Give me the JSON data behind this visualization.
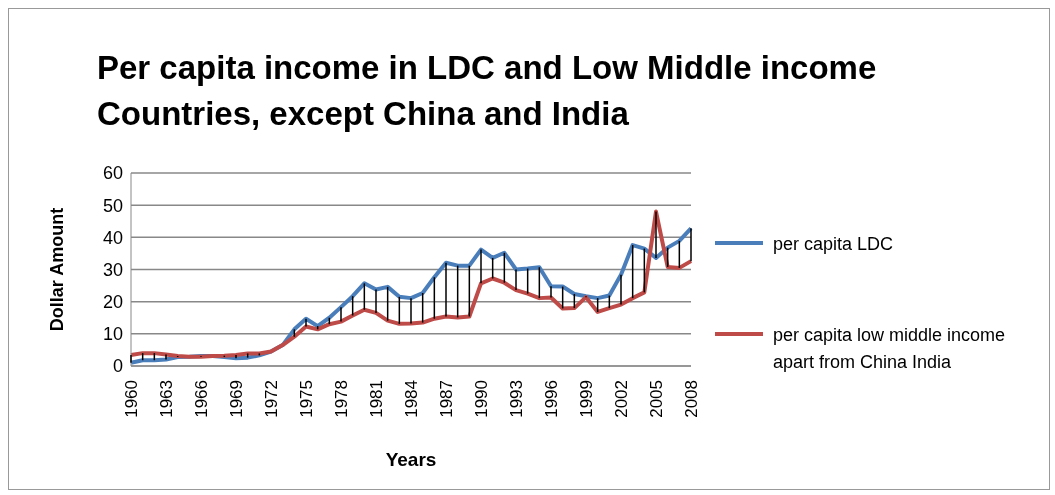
{
  "chart_data": {
    "type": "line",
    "title": "Per capita income in LDC and Low Middle income Countries, except China and India",
    "xlabel": "Years",
    "ylabel": "Dollar Amount",
    "categories": [
      "1960",
      null,
      null,
      "1963",
      null,
      null,
      "1966",
      null,
      null,
      "1969",
      null,
      null,
      "1972",
      null,
      null,
      "1975",
      null,
      null,
      "1978",
      null,
      null,
      "1981",
      null,
      null,
      "1984",
      null,
      null,
      "1987",
      null,
      null,
      "1990",
      null,
      null,
      "1993",
      null,
      null,
      "1996",
      null,
      null,
      "1999",
      null,
      null,
      "2002",
      null,
      null,
      "2005",
      null,
      null,
      "2008"
    ],
    "series": [
      {
        "name": "per capita LDC",
        "color": "#4a7ebb",
        "values": [
          1.0,
          1.8,
          1.8,
          2.0,
          2.8,
          2.9,
          3.1,
          3.1,
          2.8,
          2.4,
          2.6,
          3.3,
          4.5,
          6.5,
          11.4,
          14.7,
          12.4,
          15.0,
          18.3,
          21.7,
          25.7,
          23.8,
          24.6,
          21.5,
          21.1,
          22.7,
          27.6,
          32.1,
          31.2,
          31.2,
          36.2,
          33.6,
          35.2,
          30.0,
          30.3,
          30.7,
          24.8,
          24.7,
          22.4,
          21.7,
          21.1,
          21.9,
          28.4,
          37.6,
          36.5,
          33.6,
          36.8,
          38.9,
          42.8
        ]
      },
      {
        "name": "per capita low middle income apart from China India",
        "color": "#be4b48",
        "values": [
          3.4,
          4.0,
          4.0,
          3.6,
          3.1,
          2.9,
          2.9,
          3.1,
          3.2,
          3.4,
          3.9,
          3.9,
          4.5,
          6.5,
          9.1,
          12.3,
          11.4,
          13.0,
          13.8,
          15.7,
          17.5,
          16.5,
          14.1,
          13.1,
          13.2,
          13.5,
          14.7,
          15.4,
          15.1,
          15.4,
          25.7,
          27.2,
          25.9,
          23.6,
          22.5,
          21.1,
          21.3,
          17.9,
          18.0,
          21.4,
          16.8,
          18.0,
          19.1,
          21.1,
          22.9,
          48.0,
          30.8,
          30.5,
          32.6
        ]
      }
    ],
    "ylim": [
      0,
      60
    ],
    "yticks": [
      0,
      10,
      20,
      30,
      40,
      50,
      60
    ],
    "grid": "y",
    "legend": "right",
    "marker": "none",
    "line_style": "solid"
  }
}
